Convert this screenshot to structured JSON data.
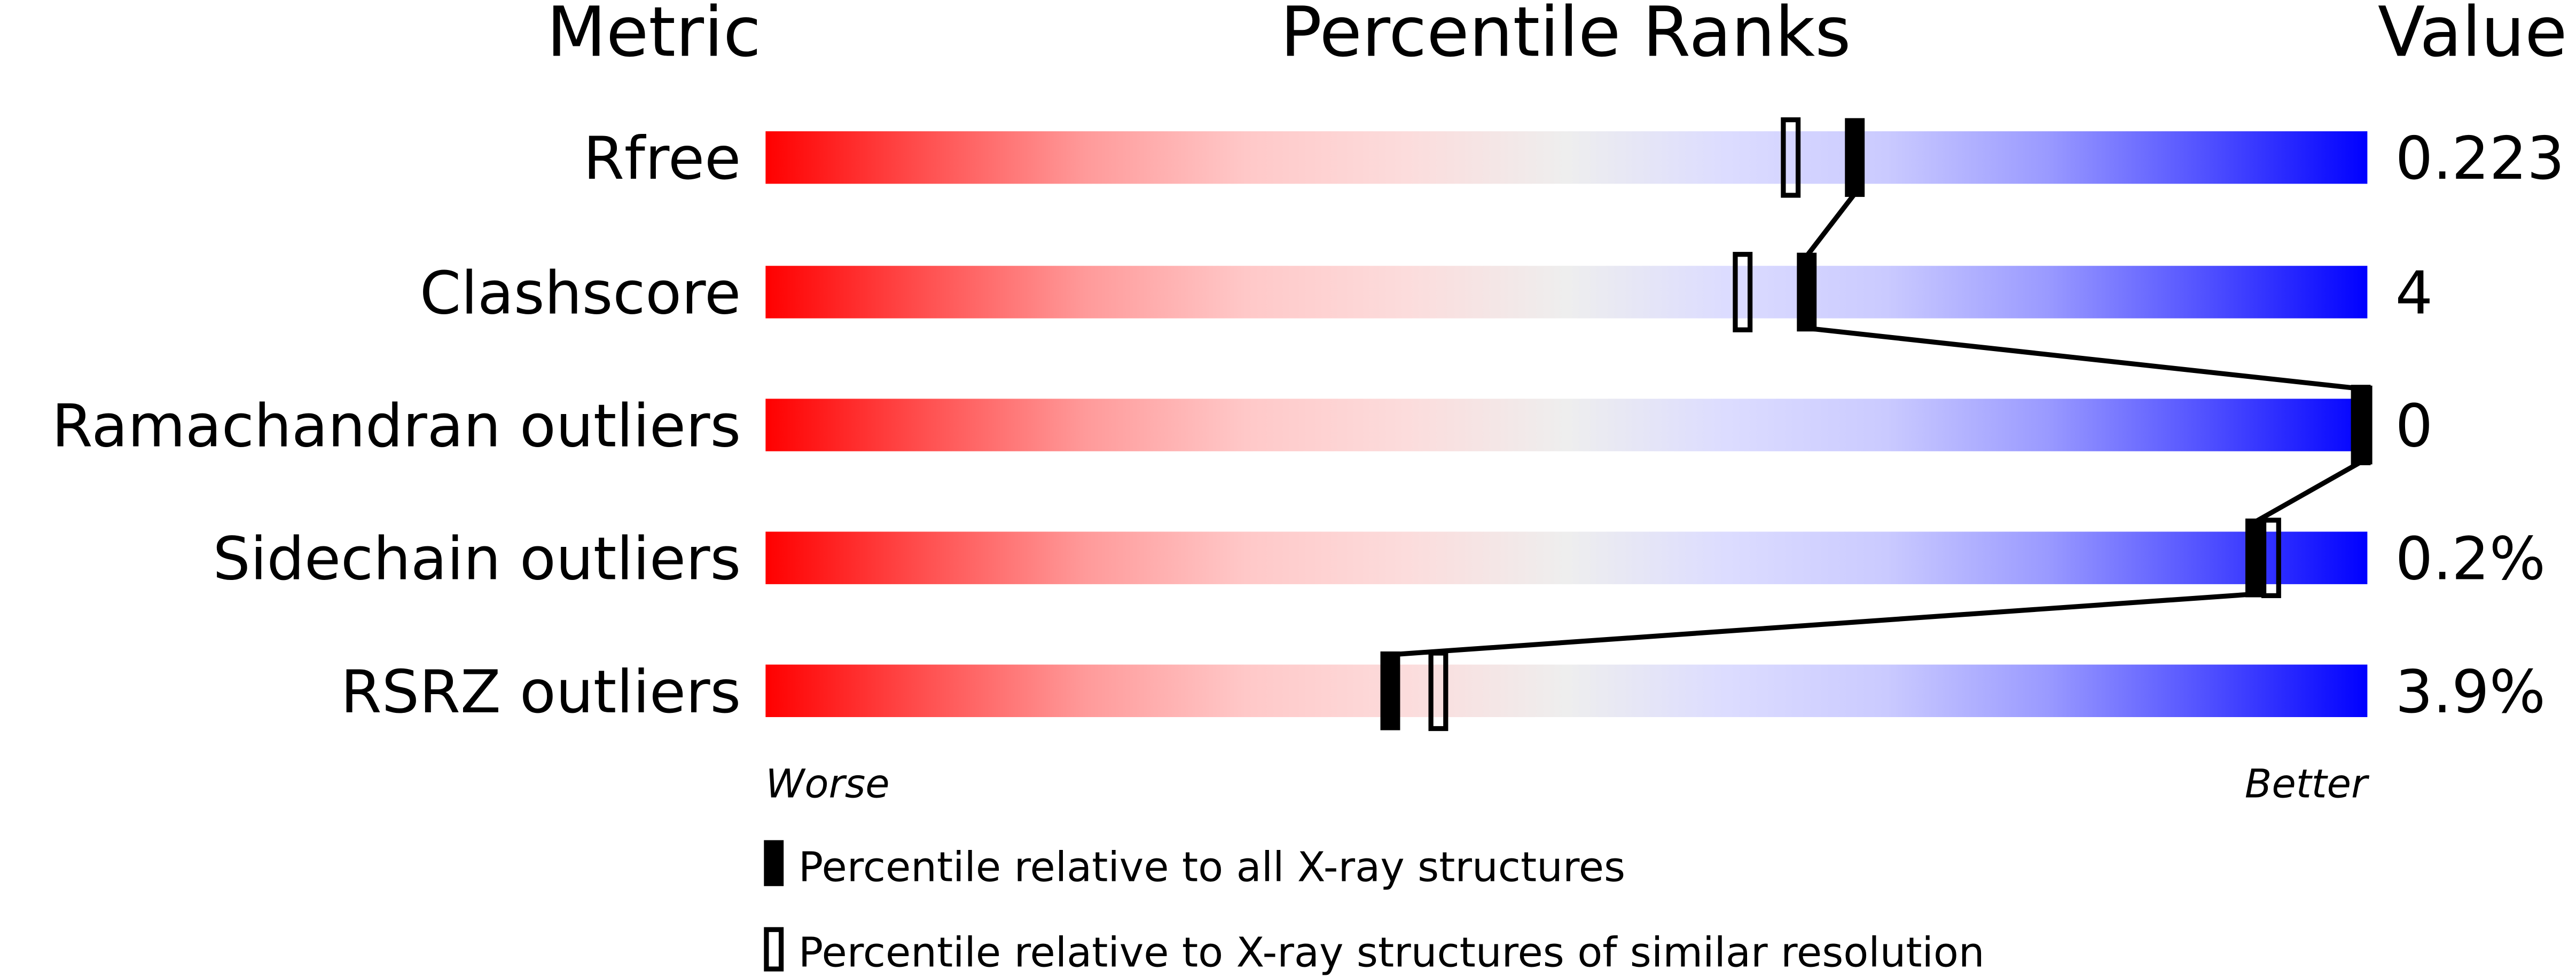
{
  "chart_data": {
    "type": "percentile-slider",
    "headers": {
      "metric": "Metric",
      "ranks": "Percentile Ranks",
      "value": "Value"
    },
    "xlim": [
      0,
      100
    ],
    "axis_labels": {
      "left": "Worse",
      "right": "Better"
    },
    "metrics": [
      {
        "name": "Rfree",
        "value": "0.223",
        "percentile_all": 68,
        "percentile_similar": 64
      },
      {
        "name": "Clashscore",
        "value": "4",
        "percentile_all": 65,
        "percentile_similar": 61
      },
      {
        "name": "Ramachandran outliers",
        "value": "0",
        "percentile_all": 100,
        "percentile_similar": 100
      },
      {
        "name": "Sidechain outliers",
        "value": "0.2%",
        "percentile_all": 93,
        "percentile_similar": 94
      },
      {
        "name": "RSRZ outliers",
        "value": "3.9%",
        "percentile_all": 39,
        "percentile_similar": 42
      }
    ],
    "legend": [
      {
        "marker": "filled",
        "label": "Percentile relative to all X-ray structures"
      },
      {
        "marker": "open",
        "label": "Percentile relative to X-ray structures of similar resolution"
      }
    ],
    "colors": {
      "worse": "#ff0000",
      "neutral": "#eeeeee",
      "better": "#0000ff",
      "marker": "#000000"
    }
  }
}
